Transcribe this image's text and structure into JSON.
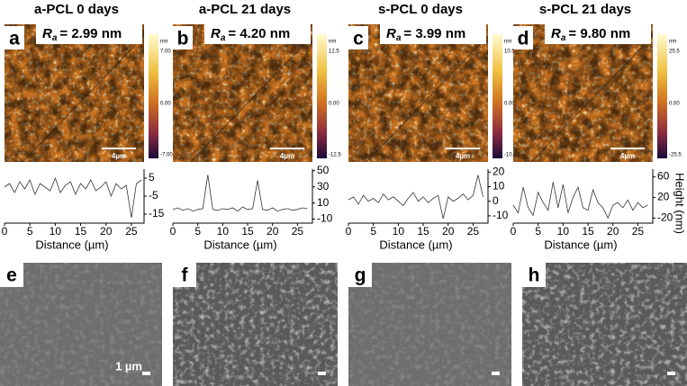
{
  "panels": [
    {
      "title": "a-PCL 0 days",
      "letter": "a",
      "ra_symbol": "R",
      "ra_subscript": "a",
      "ra_value": "= 2.99 nm",
      "colorbar": {
        "unit": "nm",
        "max": "7.00",
        "mid": "0.00",
        "min": "-7.00"
      },
      "scale_bar": "4µm",
      "profile": {
        "xlim": [
          0,
          27.5
        ],
        "ylim": [
          -20,
          10
        ],
        "xticks": [
          0,
          5,
          10,
          15,
          20,
          25
        ],
        "yticks": [
          5,
          -5,
          -15
        ],
        "xlabel": "Distance (µm)",
        "x": [
          0,
          1,
          2,
          3,
          4,
          5,
          6,
          7,
          8,
          9,
          10,
          11,
          12,
          13,
          14,
          15,
          16,
          17,
          18,
          19,
          20,
          21,
          22,
          23,
          24,
          25,
          26,
          27
        ],
        "values": [
          0,
          2,
          -3,
          3,
          -1,
          4,
          -4,
          2,
          0,
          -2,
          5,
          -3,
          1,
          3,
          -4,
          2,
          -1,
          4,
          -2,
          0,
          3,
          -5,
          2,
          -1,
          1,
          -17,
          2,
          4
        ]
      }
    },
    {
      "title": "a-PCL 21 days",
      "letter": "b",
      "ra_symbol": "R",
      "ra_subscript": "a",
      "ra_value": "= 4.20 nm",
      "colorbar": {
        "unit": "nm",
        "max": "12.5",
        "mid": "0.00",
        "min": "-12.5"
      },
      "scale_bar": "4µm",
      "profile": {
        "xlim": [
          0,
          28
        ],
        "ylim": [
          -15,
          52
        ],
        "xticks": [
          0,
          5,
          10,
          15,
          20,
          25
        ],
        "yticks": [
          50,
          30,
          10,
          -10
        ],
        "xlabel": "Distance (µm)",
        "x": [
          0,
          1,
          2,
          3,
          4,
          5,
          6,
          7,
          8,
          9,
          10,
          11,
          12,
          13,
          14,
          15,
          16,
          17,
          18,
          19,
          20,
          21,
          22,
          23,
          24,
          25,
          26,
          27
        ],
        "values": [
          2,
          4,
          1,
          3,
          0,
          2,
          3,
          45,
          2,
          1,
          3,
          2,
          4,
          0,
          5,
          2,
          3,
          38,
          2,
          1,
          4,
          0,
          2,
          3,
          1,
          2,
          4,
          3
        ]
      }
    },
    {
      "title": "s-PCL 0 days",
      "letter": "c",
      "ra_symbol": "R",
      "ra_subscript": "a",
      "ra_value": "= 3.99 nm",
      "colorbar": {
        "unit": "nm",
        "max": "10.5",
        "mid": "0.00",
        "min": "-10.5"
      },
      "scale_bar": "4µm",
      "profile": {
        "xlim": [
          0,
          28
        ],
        "ylim": [
          -15,
          22
        ],
        "xticks": [
          0,
          5,
          10,
          15,
          20,
          25
        ],
        "yticks": [
          20,
          10,
          0,
          -10
        ],
        "xlabel": "Distance (µm)",
        "x": [
          0,
          1,
          2,
          3,
          4,
          5,
          6,
          7,
          8,
          9,
          10,
          11,
          12,
          13,
          14,
          15,
          16,
          17,
          18,
          19,
          20,
          21,
          22,
          23,
          24,
          25,
          26,
          27
        ],
        "values": [
          1,
          3,
          -2,
          4,
          0,
          2,
          -1,
          5,
          1,
          3,
          0,
          -3,
          2,
          6,
          0,
          3,
          -1,
          2,
          4,
          -12,
          3,
          0,
          2,
          5,
          1,
          4,
          18,
          3
        ]
      }
    },
    {
      "title": "s-PCL 21 days",
      "letter": "d",
      "ra_symbol": "R",
      "ra_subscript": "a",
      "ra_value": "= 9.80 nm",
      "colorbar": {
        "unit": "nm",
        "max": "25.5",
        "mid": "0.00",
        "min": "-25.5"
      },
      "scale_bar": "4µm",
      "profile": {
        "xlim": [
          0,
          28
        ],
        "ylim": [
          -30,
          75
        ],
        "xticks": [
          0,
          5,
          10,
          15,
          20,
          25
        ],
        "yticks": [
          60,
          20,
          -20
        ],
        "xlabel": "Distance (µm)",
        "ylabel": "Height (nm)",
        "x": [
          0,
          1,
          2,
          3,
          4,
          5,
          6,
          7,
          8,
          9,
          10,
          11,
          12,
          13,
          14,
          15,
          16,
          17,
          18,
          19,
          20,
          21,
          22,
          23,
          24,
          25,
          26,
          27
        ],
        "values": [
          5,
          -10,
          40,
          0,
          -15,
          30,
          10,
          -5,
          50,
          0,
          45,
          -10,
          20,
          40,
          0,
          -5,
          35,
          10,
          0,
          -20,
          5,
          10,
          0,
          15,
          -5,
          10,
          0,
          5
        ]
      }
    }
  ],
  "sem": [
    {
      "letter": "e",
      "scale_bar": "1 µm"
    },
    {
      "letter": "f"
    },
    {
      "letter": "g"
    },
    {
      "letter": "h"
    }
  ]
}
